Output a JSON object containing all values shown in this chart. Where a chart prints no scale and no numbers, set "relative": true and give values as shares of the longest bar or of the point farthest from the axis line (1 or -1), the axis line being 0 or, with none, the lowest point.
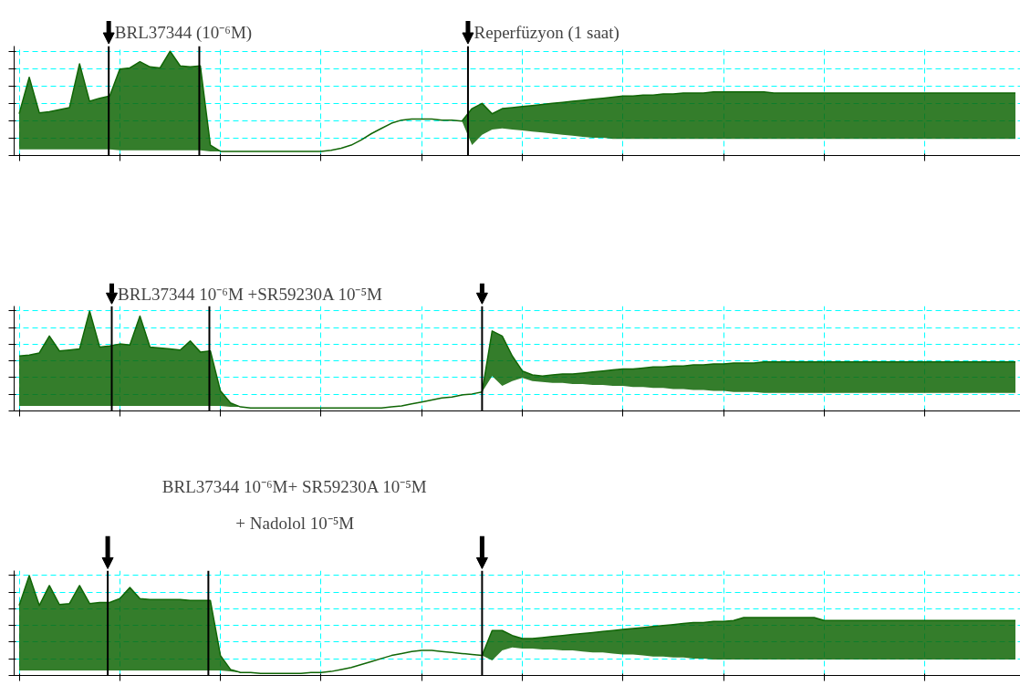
{
  "chart_data": [
    {
      "type": "line",
      "relative": true,
      "grid": true,
      "tick_labels": false,
      "marker": "none",
      "line_style": "solid",
      "categories": [
        null,
        null,
        null,
        null,
        null,
        null,
        null,
        null,
        null,
        null,
        null,
        null,
        null,
        null,
        null,
        null,
        null,
        null,
        null,
        null,
        null,
        null,
        null,
        null,
        null,
        null,
        null,
        null,
        null,
        null,
        null,
        null,
        null,
        null,
        null,
        null,
        null,
        null,
        null,
        null,
        null,
        null,
        null,
        null,
        null,
        null,
        null,
        null,
        null,
        null,
        null,
        null,
        null,
        null,
        null,
        null,
        null,
        null,
        null,
        null,
        null,
        null,
        null,
        null,
        null,
        null,
        null,
        null,
        null,
        null,
        null,
        null,
        null,
        null,
        null,
        null,
        null,
        null,
        null,
        null,
        null,
        null,
        null,
        null,
        null,
        null,
        null,
        null,
        null,
        null,
        null,
        null,
        null,
        null,
        null,
        null,
        null,
        null,
        null,
        null
      ],
      "series": [
        {
          "color": "#106606",
          "values": [
            0.4,
            0.75,
            0.41,
            0.42,
            0.44,
            0.46,
            0.88,
            0.52,
            0.55,
            0.57,
            0.83,
            0.84,
            0.9,
            0.85,
            0.84,
            1,
            0.86,
            0.85,
            0.86,
            0.1,
            0.04,
            0.04,
            0.04,
            0.04,
            0.04,
            0.04,
            0.04,
            0.04,
            0.04,
            0.04,
            0.04,
            0.05,
            0.07,
            0.1,
            0.15,
            0.21,
            0.26,
            0.31,
            0.34,
            0.35,
            0.35,
            0.35,
            0.34,
            0.34,
            0.33,
            0.45,
            0.5,
            0.4,
            0.45,
            0.46,
            0.47,
            0.48,
            0.49,
            0.5,
            0.51,
            0.52,
            0.53,
            0.54,
            0.55,
            0.56,
            0.57,
            0.57,
            0.58,
            0.58,
            0.59,
            0.59,
            0.6,
            0.6,
            0.6,
            0.61,
            0.61,
            0.61,
            0.61,
            0.61,
            0.61,
            0.6,
            0.6,
            0.6,
            0.6,
            0.6,
            0.6,
            0.6,
            0.6,
            0.6,
            0.6,
            0.6,
            0.6,
            0.6,
            0.6,
            0.6,
            0.6,
            0.6,
            0.6,
            0.6,
            0.6,
            0.6,
            0.6,
            0.6,
            0.6,
            0.6
          ],
          "lower": [
            0.06,
            0.06,
            0.06,
            0.06,
            0.06,
            0.06,
            0.06,
            0.06,
            0.06,
            0.06,
            0.05,
            0.05,
            0.05,
            0.05,
            0.05,
            0.05,
            0.05,
            0.05,
            0.05,
            0.04,
            0.04,
            0.04,
            0.04,
            0.04,
            0.04,
            0.04,
            0.04,
            0.04,
            0.04,
            0.04,
            0.04,
            0.05,
            0.07,
            0.1,
            0.15,
            0.21,
            0.26,
            0.31,
            0.34,
            0.35,
            0.35,
            0.35,
            0.34,
            0.34,
            0.33,
            0.1,
            0.2,
            0.25,
            0.26,
            0.25,
            0.24,
            0.23,
            0.22,
            0.21,
            0.2,
            0.19,
            0.18,
            0.17,
            0.17,
            0.16,
            0.16,
            0.16,
            0.16,
            0.16,
            0.16,
            0.16,
            0.16,
            0.16,
            0.16,
            0.16,
            0.16,
            0.16,
            0.16,
            0.16,
            0.16,
            0.16,
            0.16,
            0.16,
            0.16,
            0.16,
            0.16,
            0.16,
            0.16,
            0.16,
            0.16,
            0.16,
            0.16,
            0.16,
            0.16,
            0.16,
            0.16,
            0.16,
            0.16,
            0.16,
            0.16,
            0.16,
            0.16,
            0.16,
            0.16,
            0.16
          ],
          "upper": [
            0.4,
            0.75,
            0.41,
            0.42,
            0.44,
            0.46,
            0.88,
            0.52,
            0.55,
            0.57,
            0.83,
            0.84,
            0.9,
            0.85,
            0.84,
            1,
            0.86,
            0.85,
            0.86,
            0.1,
            0.04,
            0.04,
            0.04,
            0.04,
            0.04,
            0.04,
            0.04,
            0.04,
            0.04,
            0.04,
            0.04,
            0.05,
            0.07,
            0.1,
            0.15,
            0.21,
            0.26,
            0.31,
            0.34,
            0.35,
            0.35,
            0.35,
            0.34,
            0.34,
            0.33,
            0.45,
            0.5,
            0.4,
            0.45,
            0.46,
            0.47,
            0.48,
            0.49,
            0.5,
            0.51,
            0.52,
            0.53,
            0.54,
            0.55,
            0.56,
            0.57,
            0.57,
            0.58,
            0.58,
            0.59,
            0.59,
            0.6,
            0.6,
            0.6,
            0.61,
            0.61,
            0.61,
            0.61,
            0.61,
            0.61,
            0.6,
            0.6,
            0.6,
            0.6,
            0.6,
            0.6,
            0.6,
            0.6,
            0.6,
            0.6,
            0.6,
            0.6,
            0.6,
            0.6,
            0.6,
            0.6,
            0.6,
            0.6,
            0.6,
            0.6,
            0.6,
            0.6,
            0.6,
            0.6,
            0.6
          ]
        }
      ],
      "annotations": [
        "BRL37344 (10⁻⁶M)",
        "Reperfüzyon (1 saat)"
      ]
    },
    {
      "type": "line",
      "relative": true,
      "grid": true,
      "tick_labels": false,
      "marker": "none",
      "line_style": "solid",
      "categories": [
        null,
        null,
        null,
        null,
        null,
        null,
        null,
        null,
        null,
        null,
        null,
        null,
        null,
        null,
        null,
        null,
        null,
        null,
        null,
        null,
        null,
        null,
        null,
        null,
        null,
        null,
        null,
        null,
        null,
        null,
        null,
        null,
        null,
        null,
        null,
        null,
        null,
        null,
        null,
        null,
        null,
        null,
        null,
        null,
        null,
        null,
        null,
        null,
        null,
        null,
        null,
        null,
        null,
        null,
        null,
        null,
        null,
        null,
        null,
        null,
        null,
        null,
        null,
        null,
        null,
        null,
        null,
        null,
        null,
        null,
        null,
        null,
        null,
        null,
        null,
        null,
        null,
        null,
        null,
        null,
        null,
        null,
        null,
        null,
        null,
        null,
        null,
        null,
        null,
        null,
        null,
        null,
        null,
        null,
        null,
        null,
        null,
        null,
        null,
        null
      ],
      "series": [
        {
          "color": "#106606",
          "values": [
            0.55,
            0.56,
            0.58,
            0.75,
            0.6,
            0.61,
            0.62,
            1,
            0.64,
            0.65,
            0.67,
            0.66,
            0.95,
            0.64,
            0.63,
            0.62,
            0.61,
            0.7,
            0.59,
            0.6,
            0.2,
            0.08,
            0.04,
            0.03,
            0.03,
            0.03,
            0.03,
            0.03,
            0.03,
            0.03,
            0.03,
            0.03,
            0.03,
            0.03,
            0.03,
            0.03,
            0.03,
            0.04,
            0.05,
            0.07,
            0.09,
            0.11,
            0.13,
            0.14,
            0.16,
            0.17,
            0.19,
            0.8,
            0.75,
            0.55,
            0.4,
            0.36,
            0.35,
            0.36,
            0.37,
            0.37,
            0.38,
            0.39,
            0.4,
            0.41,
            0.42,
            0.42,
            0.43,
            0.44,
            0.44,
            0.45,
            0.45,
            0.46,
            0.46,
            0.47,
            0.47,
            0.48,
            0.48,
            0.48,
            0.49,
            0.49,
            0.49,
            0.49,
            0.49,
            0.49,
            0.49,
            0.49,
            0.49,
            0.49,
            0.49,
            0.49,
            0.49,
            0.49,
            0.49,
            0.49,
            0.49,
            0.49,
            0.49,
            0.49,
            0.49,
            0.49,
            0.49,
            0.49,
            0.49,
            0.49
          ],
          "lower": [
            0.05,
            0.05,
            0.05,
            0.05,
            0.05,
            0.05,
            0.05,
            0.05,
            0.05,
            0.05,
            0.05,
            0.05,
            0.05,
            0.05,
            0.05,
            0.05,
            0.05,
            0.05,
            0.05,
            0.05,
            0.05,
            0.04,
            0.04,
            0.03,
            0.03,
            0.03,
            0.03,
            0.03,
            0.03,
            0.03,
            0.03,
            0.03,
            0.03,
            0.03,
            0.03,
            0.03,
            0.03,
            0.04,
            0.05,
            0.07,
            0.09,
            0.11,
            0.13,
            0.14,
            0.16,
            0.17,
            0.19,
            0.35,
            0.25,
            0.3,
            0.33,
            0.3,
            0.29,
            0.28,
            0.28,
            0.27,
            0.27,
            0.26,
            0.26,
            0.25,
            0.25,
            0.24,
            0.24,
            0.23,
            0.23,
            0.22,
            0.22,
            0.21,
            0.21,
            0.2,
            0.2,
            0.19,
            0.19,
            0.19,
            0.18,
            0.18,
            0.18,
            0.18,
            0.18,
            0.18,
            0.18,
            0.18,
            0.18,
            0.18,
            0.18,
            0.18,
            0.18,
            0.18,
            0.18,
            0.18,
            0.18,
            0.18,
            0.18,
            0.18,
            0.18,
            0.18,
            0.18,
            0.18,
            0.18,
            0.18
          ],
          "upper": [
            0.55,
            0.56,
            0.58,
            0.75,
            0.6,
            0.61,
            0.62,
            1,
            0.64,
            0.65,
            0.67,
            0.66,
            0.95,
            0.64,
            0.63,
            0.62,
            0.61,
            0.7,
            0.59,
            0.6,
            0.2,
            0.08,
            0.04,
            0.03,
            0.03,
            0.03,
            0.03,
            0.03,
            0.03,
            0.03,
            0.03,
            0.03,
            0.03,
            0.03,
            0.03,
            0.03,
            0.03,
            0.04,
            0.05,
            0.07,
            0.09,
            0.11,
            0.13,
            0.14,
            0.16,
            0.17,
            0.19,
            0.8,
            0.75,
            0.55,
            0.4,
            0.36,
            0.35,
            0.36,
            0.37,
            0.37,
            0.38,
            0.39,
            0.4,
            0.41,
            0.42,
            0.42,
            0.43,
            0.44,
            0.44,
            0.45,
            0.45,
            0.46,
            0.46,
            0.47,
            0.47,
            0.48,
            0.48,
            0.48,
            0.49,
            0.49,
            0.49,
            0.49,
            0.49,
            0.49,
            0.49,
            0.49,
            0.49,
            0.49,
            0.49,
            0.49,
            0.49,
            0.49,
            0.49,
            0.49,
            0.49,
            0.49,
            0.49,
            0.49,
            0.49,
            0.49,
            0.49,
            0.49,
            0.49,
            0.49
          ]
        }
      ],
      "annotations": [
        "BRL37344 10⁻⁶M +SR59230A 10⁻⁵M"
      ]
    },
    {
      "type": "line",
      "relative": true,
      "grid": true,
      "tick_labels": false,
      "marker": "none",
      "line_style": "solid",
      "annotations": [
        "BRL37344 10⁻⁶M+ SR59230A 10⁻⁵M",
        "+ Nadolol 10⁻⁵M"
      ],
      "categories": [
        null,
        null,
        null,
        null,
        null,
        null,
        null,
        null,
        null,
        null,
        null,
        null,
        null,
        null,
        null,
        null,
        null,
        null,
        null,
        null,
        null,
        null,
        null,
        null,
        null,
        null,
        null,
        null,
        null,
        null,
        null,
        null,
        null,
        null,
        null,
        null,
        null,
        null,
        null,
        null,
        null,
        null,
        null,
        null,
        null,
        null,
        null,
        null,
        null,
        null,
        null,
        null,
        null,
        null,
        null,
        null,
        null,
        null,
        null,
        null,
        null,
        null,
        null,
        null,
        null,
        null,
        null,
        null,
        null,
        null,
        null,
        null,
        null,
        null,
        null,
        null,
        null,
        null,
        null,
        null,
        null,
        null,
        null,
        null,
        null,
        null,
        null,
        null,
        null,
        null,
        null,
        null,
        null,
        null,
        null,
        null,
        null,
        null,
        null,
        null
      ],
      "series": [
        {
          "color": "#106606",
          "values": [
            0.7,
            1,
            0.7,
            0.9,
            0.71,
            0.72,
            0.9,
            0.72,
            0.73,
            0.73,
            0.77,
            0.88,
            0.77,
            0.76,
            0.76,
            0.76,
            0.76,
            0.75,
            0.75,
            0.75,
            0.2,
            0.06,
            0.03,
            0.03,
            0.02,
            0.02,
            0.02,
            0.02,
            0.02,
            0.03,
            0.03,
            0.04,
            0.06,
            0.08,
            0.11,
            0.14,
            0.17,
            0.2,
            0.22,
            0.24,
            0.25,
            0.25,
            0.24,
            0.23,
            0.22,
            0.21,
            0.2,
            0.45,
            0.45,
            0.4,
            0.37,
            0.37,
            0.38,
            0.39,
            0.4,
            0.41,
            0.42,
            0.43,
            0.44,
            0.45,
            0.46,
            0.47,
            0.48,
            0.49,
            0.5,
            0.51,
            0.52,
            0.53,
            0.53,
            0.54,
            0.54,
            0.55,
            0.58,
            0.58,
            0.58,
            0.58,
            0.58,
            0.58,
            0.58,
            0.58,
            0.55,
            0.55,
            0.55,
            0.55,
            0.55,
            0.55,
            0.55,
            0.55,
            0.55,
            0.55,
            0.55,
            0.55,
            0.55,
            0.55,
            0.55,
            0.55,
            0.55,
            0.55,
            0.55,
            0.55
          ],
          "lower": [
            0.05,
            0.05,
            0.05,
            0.05,
            0.05,
            0.05,
            0.05,
            0.05,
            0.05,
            0.05,
            0.05,
            0.05,
            0.05,
            0.05,
            0.05,
            0.05,
            0.05,
            0.05,
            0.05,
            0.05,
            0.05,
            0.04,
            0.03,
            0.03,
            0.02,
            0.02,
            0.02,
            0.02,
            0.02,
            0.03,
            0.03,
            0.04,
            0.06,
            0.08,
            0.11,
            0.14,
            0.17,
            0.2,
            0.22,
            0.24,
            0.25,
            0.25,
            0.24,
            0.23,
            0.22,
            0.21,
            0.2,
            0.15,
            0.25,
            0.28,
            0.27,
            0.27,
            0.26,
            0.26,
            0.25,
            0.25,
            0.24,
            0.23,
            0.23,
            0.22,
            0.21,
            0.21,
            0.2,
            0.19,
            0.19,
            0.18,
            0.18,
            0.17,
            0.17,
            0.16,
            0.16,
            0.16,
            0.16,
            0.16,
            0.16,
            0.16,
            0.16,
            0.16,
            0.16,
            0.16,
            0.16,
            0.16,
            0.16,
            0.16,
            0.16,
            0.16,
            0.16,
            0.16,
            0.16,
            0.16,
            0.16,
            0.16,
            0.16,
            0.16,
            0.16,
            0.16,
            0.16,
            0.16,
            0.16,
            0.16
          ],
          "upper": [
            0.7,
            1,
            0.7,
            0.9,
            0.71,
            0.72,
            0.9,
            0.72,
            0.73,
            0.73,
            0.77,
            0.88,
            0.77,
            0.76,
            0.76,
            0.76,
            0.76,
            0.75,
            0.75,
            0.75,
            0.2,
            0.06,
            0.03,
            0.03,
            0.02,
            0.02,
            0.02,
            0.02,
            0.02,
            0.03,
            0.03,
            0.04,
            0.06,
            0.08,
            0.11,
            0.14,
            0.17,
            0.2,
            0.22,
            0.24,
            0.25,
            0.25,
            0.24,
            0.23,
            0.22,
            0.21,
            0.2,
            0.45,
            0.45,
            0.4,
            0.37,
            0.37,
            0.38,
            0.39,
            0.4,
            0.41,
            0.42,
            0.43,
            0.44,
            0.45,
            0.46,
            0.47,
            0.48,
            0.49,
            0.5,
            0.51,
            0.52,
            0.53,
            0.53,
            0.54,
            0.54,
            0.55,
            0.58,
            0.58,
            0.58,
            0.58,
            0.58,
            0.58,
            0.58,
            0.58,
            0.55,
            0.55,
            0.55,
            0.55,
            0.55,
            0.55,
            0.55,
            0.55,
            0.55,
            0.55,
            0.55,
            0.55,
            0.55,
            0.55,
            0.55,
            0.55,
            0.55,
            0.55,
            0.55,
            0.55
          ]
        }
      ]
    }
  ]
}
